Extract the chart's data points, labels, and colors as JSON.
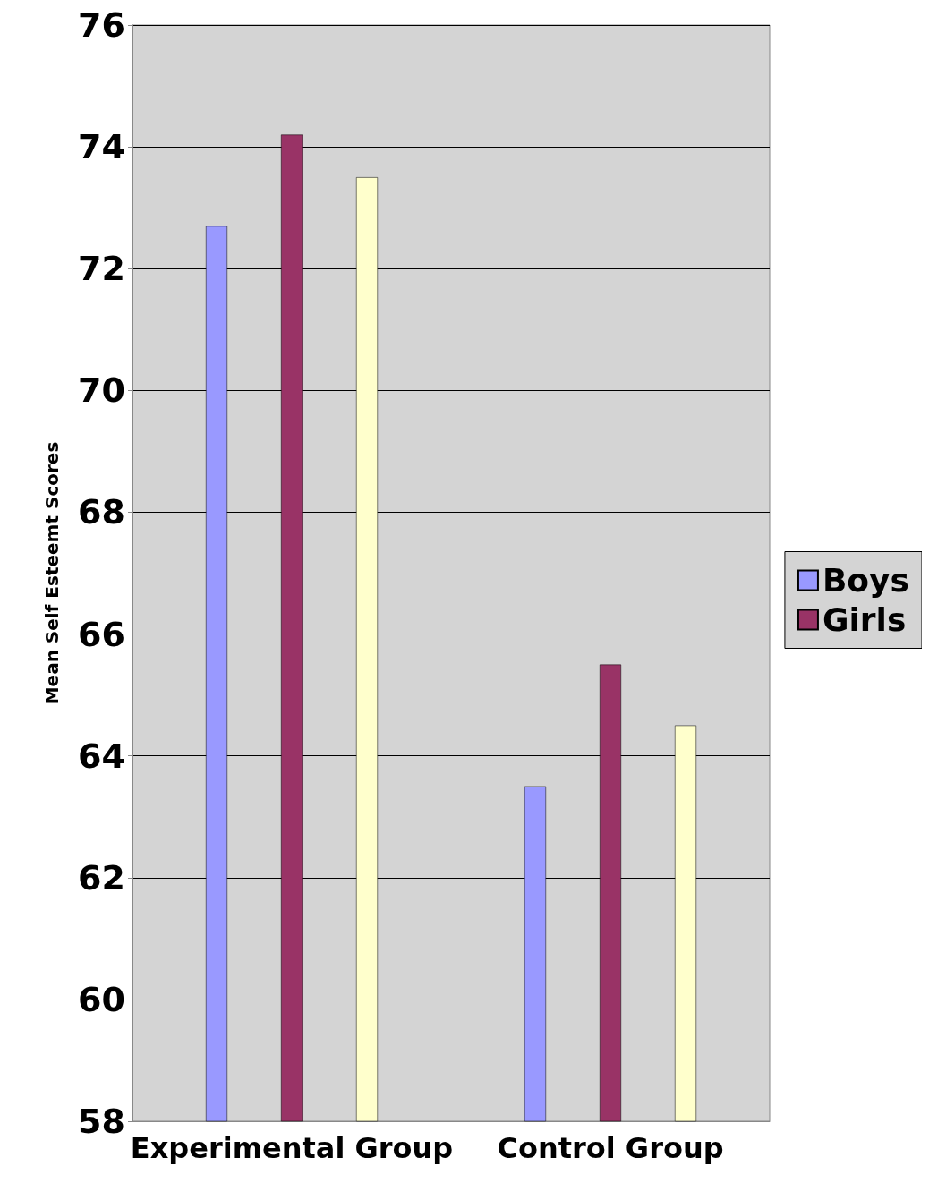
{
  "chart_data": {
    "type": "bar",
    "ylabel": "Mean Self Esteemt Scores",
    "categories": [
      "Experimental Group",
      "Control Group"
    ],
    "series": [
      {
        "name": "Boys",
        "color": "#9999ff",
        "values": [
          72.7,
          63.5
        ]
      },
      {
        "name": "Girls",
        "color": "#993366",
        "values": [
          74.2,
          65.5
        ]
      },
      {
        "color": "#ffffcc",
        "values": [
          73.5,
          64.5
        ]
      }
    ],
    "ylim": [
      58,
      76
    ],
    "yticks": [
      58,
      60,
      62,
      64,
      66,
      68,
      70,
      72,
      74,
      76
    ],
    "grid": "y",
    "legend": "right"
  }
}
